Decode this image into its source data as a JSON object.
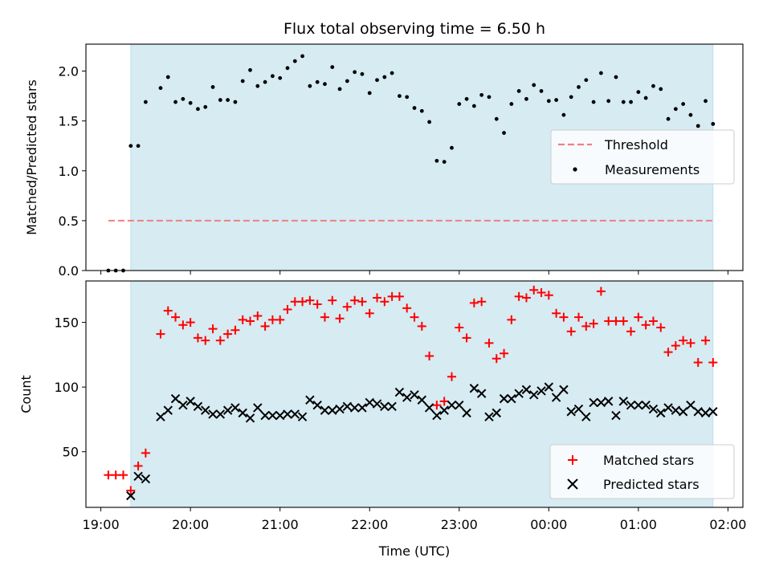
{
  "chart_data": [
    {
      "type": "scatter",
      "title": "Flux total observing time = 6.50 h",
      "xlabel": "",
      "ylabel": "Matched/Predicted stars",
      "xlim": [
        "18:50",
        "02:10"
      ],
      "ylim": [
        0,
        2.27
      ],
      "yticks": [
        0.0,
        0.5,
        1.0,
        1.5,
        2.0
      ],
      "ytick_labels": [
        "0.0",
        "0.5",
        "1.0",
        "1.5",
        "2.0"
      ],
      "observing_window": [
        "19:20",
        "01:50"
      ],
      "legend": {
        "placement": "center-right",
        "entries": [
          "Threshold",
          "Measurements"
        ]
      },
      "colors": {
        "band": "#add8e6",
        "threshold": "#f08080",
        "measurements": "#000000"
      },
      "threshold": {
        "name": "Threshold",
        "value": 0.5,
        "x": [
          "19:05",
          "01:50"
        ]
      },
      "series": [
        {
          "name": "Measurements",
          "x": [
            "19:05",
            "19:10",
            "19:15",
            "19:20",
            "19:25",
            "19:30",
            "19:40",
            "19:45",
            "19:50",
            "19:55",
            "20:00",
            "20:05",
            "20:10",
            "20:15",
            "20:20",
            "20:25",
            "20:30",
            "20:35",
            "20:40",
            "20:45",
            "20:50",
            "20:55",
            "21:00",
            "21:05",
            "21:10",
            "21:15",
            "21:20",
            "21:25",
            "21:30",
            "21:35",
            "21:40",
            "21:45",
            "21:50",
            "21:55",
            "22:00",
            "22:05",
            "22:10",
            "22:15",
            "22:20",
            "22:25",
            "22:30",
            "22:35",
            "22:40",
            "22:45",
            "22:50",
            "22:55",
            "23:00",
            "23:05",
            "23:10",
            "23:15",
            "23:20",
            "23:25",
            "23:30",
            "23:35",
            "23:40",
            "23:45",
            "23:50",
            "23:55",
            "00:00",
            "00:05",
            "00:10",
            "00:15",
            "00:20",
            "00:25",
            "00:30",
            "00:35",
            "00:40",
            "00:45",
            "00:50",
            "00:55",
            "01:00",
            "01:05",
            "01:10",
            "01:15",
            "01:20",
            "01:25",
            "01:30",
            "01:35",
            "01:40",
            "01:45",
            "01:50"
          ],
          "y": [
            0.0,
            0.0,
            0.0,
            1.25,
            1.25,
            1.69,
            1.83,
            1.94,
            1.69,
            1.72,
            1.68,
            1.62,
            1.64,
            1.84,
            1.71,
            1.71,
            1.69,
            1.9,
            2.01,
            1.85,
            1.89,
            1.95,
            1.93,
            2.03,
            2.1,
            2.15,
            1.85,
            1.89,
            1.87,
            2.04,
            1.82,
            1.9,
            1.99,
            1.97,
            1.78,
            1.91,
            1.94,
            1.98,
            1.75,
            1.74,
            1.63,
            1.6,
            1.49,
            1.1,
            1.09,
            1.23,
            1.67,
            1.72,
            1.65,
            1.76,
            1.74,
            1.52,
            1.38,
            1.67,
            1.8,
            1.72,
            1.86,
            1.8,
            1.7,
            1.71,
            1.56,
            1.74,
            1.84,
            1.91,
            1.69,
            1.98,
            1.7,
            1.94,
            1.69,
            1.69,
            1.79,
            1.73,
            1.85,
            1.82,
            1.52,
            1.62,
            1.67,
            1.56,
            1.45,
            1.7,
            1.47
          ]
        }
      ]
    },
    {
      "type": "scatter",
      "title": "",
      "xlabel": "Time (UTC)",
      "ylabel": "Count",
      "xlim": [
        "18:50",
        "02:10"
      ],
      "ylim": [
        7,
        182
      ],
      "yticks": [
        50,
        100,
        150
      ],
      "ytick_labels": [
        "50",
        "100",
        "150"
      ],
      "xticks": [
        "19:00",
        "20:00",
        "21:00",
        "22:00",
        "23:00",
        "00:00",
        "01:00",
        "02:00"
      ],
      "observing_window": [
        "19:20",
        "01:50"
      ],
      "legend": {
        "placement": "lower-right",
        "entries": [
          "Matched stars",
          "Predicted stars"
        ]
      },
      "colors": {
        "band": "#add8e6",
        "matched": "#ff0000",
        "predicted": "#000000"
      },
      "series": [
        {
          "name": "Matched stars",
          "marker": "+",
          "x": [
            "19:05",
            "19:10",
            "19:15",
            "19:20",
            "19:25",
            "19:30",
            "19:40",
            "19:45",
            "19:50",
            "19:55",
            "20:00",
            "20:05",
            "20:10",
            "20:15",
            "20:20",
            "20:25",
            "20:30",
            "20:35",
            "20:40",
            "20:45",
            "20:50",
            "20:55",
            "21:00",
            "21:05",
            "21:10",
            "21:15",
            "21:20",
            "21:25",
            "21:30",
            "21:35",
            "21:40",
            "21:45",
            "21:50",
            "21:55",
            "22:00",
            "22:05",
            "22:10",
            "22:15",
            "22:20",
            "22:25",
            "22:30",
            "22:35",
            "22:40",
            "22:45",
            "22:50",
            "22:55",
            "23:00",
            "23:05",
            "23:10",
            "23:15",
            "23:20",
            "23:25",
            "23:30",
            "23:35",
            "23:40",
            "23:45",
            "23:50",
            "23:55",
            "00:00",
            "00:05",
            "00:10",
            "00:15",
            "00:20",
            "00:25",
            "00:30",
            "00:35",
            "00:40",
            "00:45",
            "00:50",
            "00:55",
            "01:00",
            "01:05",
            "01:10",
            "01:15",
            "01:20",
            "01:25",
            "01:30",
            "01:35",
            "01:40",
            "01:45",
            "01:50"
          ],
          "y": [
            32,
            32,
            32,
            20,
            39,
            49,
            141,
            159,
            154,
            148,
            150,
            138,
            136,
            145,
            136,
            141,
            144,
            152,
            151,
            155,
            147,
            152,
            152,
            160,
            166,
            166,
            167,
            164,
            154,
            167,
            153,
            162,
            167,
            166,
            157,
            169,
            166,
            170,
            170,
            161,
            154,
            147,
            124,
            86,
            89,
            108,
            146,
            138,
            165,
            166,
            134,
            122,
            126,
            152,
            170,
            169,
            175,
            173,
            171,
            157,
            154,
            143,
            154,
            147,
            149,
            174,
            151,
            151,
            151,
            143,
            154,
            148,
            151,
            146,
            127,
            132,
            136,
            134,
            119,
            136,
            119
          ]
        },
        {
          "name": "Predicted stars",
          "marker": "x",
          "x": [
            "19:20",
            "19:25",
            "19:30",
            "19:40",
            "19:45",
            "19:50",
            "19:55",
            "20:00",
            "20:05",
            "20:10",
            "20:15",
            "20:20",
            "20:25",
            "20:30",
            "20:35",
            "20:40",
            "20:45",
            "20:50",
            "20:55",
            "21:00",
            "21:05",
            "21:10",
            "21:15",
            "21:20",
            "21:25",
            "21:30",
            "21:35",
            "21:40",
            "21:45",
            "21:50",
            "21:55",
            "22:00",
            "22:05",
            "22:10",
            "22:15",
            "22:20",
            "22:25",
            "22:30",
            "22:35",
            "22:40",
            "22:45",
            "22:50",
            "22:55",
            "23:00",
            "23:05",
            "23:10",
            "23:15",
            "23:20",
            "23:25",
            "23:30",
            "23:35",
            "23:40",
            "23:45",
            "23:50",
            "23:55",
            "00:00",
            "00:05",
            "00:10",
            "00:15",
            "00:20",
            "00:25",
            "00:30",
            "00:35",
            "00:40",
            "00:45",
            "00:50",
            "00:55",
            "01:00",
            "01:05",
            "01:10",
            "01:15",
            "01:20",
            "01:25",
            "01:30",
            "01:35",
            "01:40",
            "01:45",
            "01:50"
          ],
          "y": [
            16,
            31,
            29,
            77,
            82,
            91,
            86,
            89,
            85,
            82,
            79,
            79,
            82,
            84,
            80,
            76,
            84,
            78,
            78,
            78,
            79,
            79,
            77,
            90,
            86,
            82,
            82,
            83,
            85,
            84,
            84,
            88,
            87,
            85,
            85,
            96,
            92,
            94,
            90,
            84,
            78,
            82,
            86,
            86,
            80,
            99,
            95,
            77,
            80,
            91,
            91,
            95,
            98,
            94,
            97,
            100,
            92,
            98,
            81,
            83,
            77,
            88,
            88,
            89,
            78,
            89,
            86,
            86,
            86,
            83,
            80,
            84,
            82,
            81,
            86,
            81,
            80,
            81
          ]
        }
      ]
    }
  ]
}
